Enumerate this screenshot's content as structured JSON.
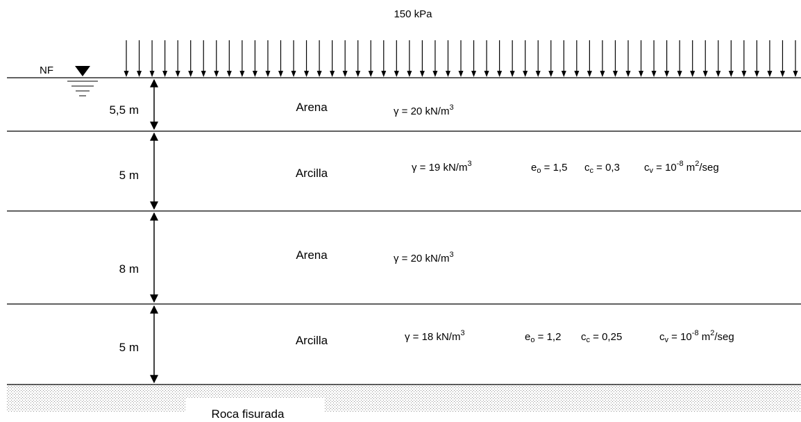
{
  "load": {
    "label": "150 kPa"
  },
  "water_table": {
    "label": "NF"
  },
  "layers": [
    {
      "thickness": "5,5 m",
      "material": "Arena",
      "props": {
        "gamma_prefix": "γ = 20 kN/m",
        "gamma_sup": "3"
      }
    },
    {
      "thickness": "5 m",
      "material": "Arcilla",
      "props": {
        "gamma_prefix": "γ = 19 kN/m",
        "gamma_sup": "3",
        "e_main": "e",
        "e_sub": "o",
        "e_value": " = 1,5",
        "cc_main": "c",
        "cc_sub": "c",
        "cc_value": " = 0,3",
        "cv_main": "c",
        "cv_sub": "v",
        "cv_value": " = 10",
        "cv_exp": "-8",
        "unit_main": "m",
        "unit_sup": "2",
        "unit_tail": "/seg"
      }
    },
    {
      "thickness": "8 m",
      "material": "Arena",
      "props": {
        "gamma_prefix": "γ = 20 kN/m",
        "gamma_sup": "3"
      }
    },
    {
      "thickness": "5 m",
      "material": "Arcilla",
      "props": {
        "gamma_prefix": "γ = 18 kN/m",
        "gamma_sup": "3",
        "e_main": "e",
        "e_sub": "o",
        "e_value": " = 1,2",
        "cc_main": "c",
        "cc_sub": "c",
        "cc_value": " = 0,25",
        "cv_main": "c",
        "cv_sub": "v",
        "cv_value": " = 10",
        "cv_exp": "-8",
        "unit_main": "m",
        "unit_sup": "2",
        "unit_tail": "/seg"
      }
    }
  ],
  "bedrock": {
    "label": "Roca fisurada"
  },
  "colors": {
    "line": "#000000",
    "hatch": "#8a8a8a",
    "background": "#ffffff"
  }
}
